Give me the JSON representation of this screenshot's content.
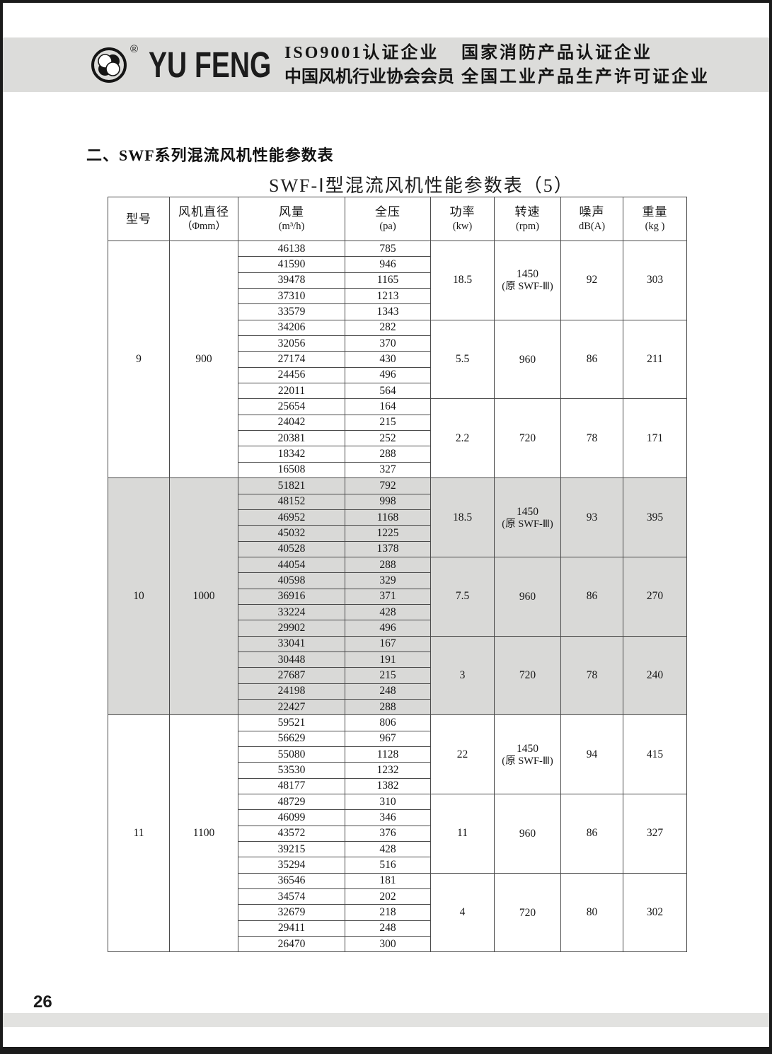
{
  "header": {
    "brand": "YU FENG",
    "registered_mark": "®",
    "certifications": {
      "line1_left": "ISO9001认证企业",
      "line1_right": "国家消防产品认证企业",
      "line2_left": "中国风机行业协会会员",
      "line2_right": "全国工业产品生产许可证企业"
    }
  },
  "section": {
    "title": "二、SWF系列混流风机性能参数表",
    "subtitle": "SWF-Ⅰ型混流风机性能参数表（5）"
  },
  "table": {
    "columns": [
      {
        "label": "型号",
        "unit": ""
      },
      {
        "label": "风机直径",
        "unit": "（Φmm）"
      },
      {
        "label": "风量",
        "unit": "(m³/h)"
      },
      {
        "label": "全压",
        "unit": "(pa)"
      },
      {
        "label": "功率",
        "unit": "(kw)"
      },
      {
        "label": "转速",
        "unit": "(rpm)"
      },
      {
        "label": "噪声",
        "unit": "dB(A)"
      },
      {
        "label": "重量",
        "unit": "(kg )"
      }
    ],
    "model_blocks": [
      {
        "model": "9",
        "diameter": "900",
        "shaded": false,
        "groups": [
          {
            "power": "18.5",
            "speed": "1450",
            "speed_note": "(原 SWF-Ⅲ)",
            "noise": "92",
            "weight": "303",
            "rows": [
              [
                "46138",
                "785"
              ],
              [
                "41590",
                "946"
              ],
              [
                "39478",
                "1165"
              ],
              [
                "37310",
                "1213"
              ],
              [
                "33579",
                "1343"
              ]
            ]
          },
          {
            "power": "5.5",
            "speed": "960",
            "speed_note": "",
            "noise": "86",
            "weight": "211",
            "rows": [
              [
                "34206",
                "282"
              ],
              [
                "32056",
                "370"
              ],
              [
                "27174",
                "430"
              ],
              [
                "24456",
                "496"
              ],
              [
                "22011",
                "564"
              ]
            ]
          },
          {
            "power": "2.2",
            "speed": "720",
            "speed_note": "",
            "noise": "78",
            "weight": "171",
            "rows": [
              [
                "25654",
                "164"
              ],
              [
                "24042",
                "215"
              ],
              [
                "20381",
                "252"
              ],
              [
                "18342",
                "288"
              ],
              [
                "16508",
                "327"
              ]
            ]
          }
        ]
      },
      {
        "model": "10",
        "diameter": "1000",
        "shaded": true,
        "groups": [
          {
            "power": "18.5",
            "speed": "1450",
            "speed_note": "(原 SWF-Ⅲ)",
            "noise": "93",
            "weight": "395",
            "rows": [
              [
                "51821",
                "792"
              ],
              [
                "48152",
                "998"
              ],
              [
                "46952",
                "1168"
              ],
              [
                "45032",
                "1225"
              ],
              [
                "40528",
                "1378"
              ]
            ]
          },
          {
            "power": "7.5",
            "speed": "960",
            "speed_note": "",
            "noise": "86",
            "weight": "270",
            "rows": [
              [
                "44054",
                "288"
              ],
              [
                "40598",
                "329"
              ],
              [
                "36916",
                "371"
              ],
              [
                "33224",
                "428"
              ],
              [
                "29902",
                "496"
              ]
            ]
          },
          {
            "power": "3",
            "speed": "720",
            "speed_note": "",
            "noise": "78",
            "weight": "240",
            "rows": [
              [
                "33041",
                "167"
              ],
              [
                "30448",
                "191"
              ],
              [
                "27687",
                "215"
              ],
              [
                "24198",
                "248"
              ],
              [
                "22427",
                "288"
              ]
            ]
          }
        ]
      },
      {
        "model": "11",
        "diameter": "1100",
        "shaded": false,
        "groups": [
          {
            "power": "22",
            "speed": "1450",
            "speed_note": "(原 SWF-Ⅲ)",
            "noise": "94",
            "weight": "415",
            "rows": [
              [
                "59521",
                "806"
              ],
              [
                "56629",
                "967"
              ],
              [
                "55080",
                "1128"
              ],
              [
                "53530",
                "1232"
              ],
              [
                "48177",
                "1382"
              ]
            ]
          },
          {
            "power": "11",
            "speed": "960",
            "speed_note": "",
            "noise": "86",
            "weight": "327",
            "rows": [
              [
                "48729",
                "310"
              ],
              [
                "46099",
                "346"
              ],
              [
                "43572",
                "376"
              ],
              [
                "39215",
                "428"
              ],
              [
                "35294",
                "516"
              ]
            ]
          },
          {
            "power": "4",
            "speed": "720",
            "speed_note": "",
            "noise": "80",
            "weight": "302",
            "rows": [
              [
                "36546",
                "181"
              ],
              [
                "34574",
                "202"
              ],
              [
                "32679",
                "218"
              ],
              [
                "29411",
                "248"
              ],
              [
                "26470",
                "300"
              ]
            ]
          }
        ]
      }
    ]
  },
  "footer": {
    "page_number": "26"
  },
  "colors": {
    "banner_gray": "#dcdcda",
    "shaded_band": "#d9d9d7",
    "footer_bar": "#e2e2e0"
  }
}
